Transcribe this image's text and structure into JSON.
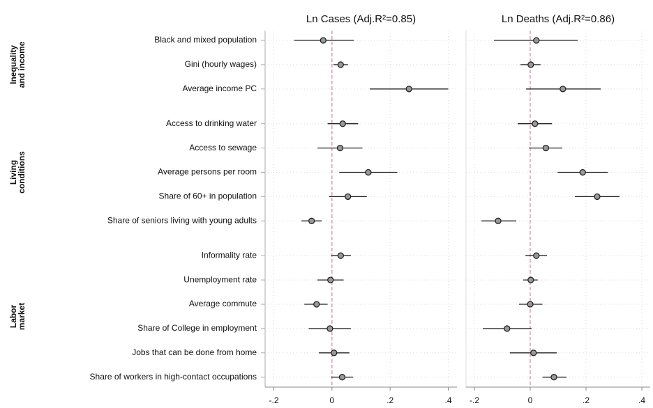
{
  "chart_data": [
    {
      "type": "errorbar",
      "title": "Ln Cases (Adj.R²=0.85)",
      "groups": [
        {
          "label": [
            "Inequality",
            "and income"
          ],
          "categories": [
            "Black and mixed population",
            "Gini (hourly wages)",
            "Average income PC"
          ]
        },
        {
          "label": [
            "Living",
            "conditions"
          ],
          "categories": [
            "Access to drinking water",
            "Access to sewage",
            "Average persons per room",
            "Share of 60+ in population",
            "Share of seniors living with young adults"
          ]
        },
        {
          "label": [
            "Labor",
            "market"
          ],
          "categories": [
            "Informality rate",
            "Unemployment rate",
            "Average commute",
            "Share of College in employment",
            "Jobs that can be done from home",
            "Share of workers in high-contact occupations"
          ]
        }
      ],
      "values": [
        -0.03,
        0.03,
        0.265,
        0.037,
        0.028,
        0.125,
        0.055,
        -0.07,
        0.03,
        -0.005,
        -0.053,
        -0.007,
        0.007,
        0.035
      ],
      "lower": [
        -0.13,
        0.005,
        0.13,
        -0.015,
        -0.05,
        0.025,
        -0.01,
        -0.105,
        -0.003,
        -0.05,
        -0.095,
        -0.08,
        -0.045,
        -0.003
      ],
      "upper": [
        0.075,
        0.055,
        0.4,
        0.09,
        0.105,
        0.225,
        0.12,
        -0.035,
        0.065,
        0.04,
        -0.015,
        0.065,
        0.06,
        0.073
      ],
      "xlim": [
        -0.23,
        0.43
      ],
      "xticks": [
        {
          "value": -0.2,
          "label": "-.2"
        },
        0,
        {
          "value": 0.2,
          "label": ".2"
        },
        {
          "value": 0.4,
          "label": ".4"
        }
      ],
      "grid": true
    },
    {
      "type": "errorbar",
      "title": "Ln Deaths (Adj.R²=0.86)",
      "values": [
        0.022,
        0.002,
        0.117,
        0.017,
        0.056,
        0.188,
        0.24,
        -0.115,
        0.022,
        0.002,
        0.0,
        -0.083,
        0.012,
        0.085
      ],
      "lower": [
        -0.13,
        -0.035,
        -0.015,
        -0.045,
        -0.005,
        0.098,
        0.16,
        -0.175,
        -0.017,
        -0.025,
        -0.04,
        -0.17,
        -0.073,
        0.044
      ],
      "upper": [
        0.17,
        0.037,
        0.253,
        0.078,
        0.115,
        0.278,
        0.32,
        -0.05,
        0.06,
        0.027,
        0.044,
        0.005,
        0.095,
        0.13
      ],
      "xlim": [
        -0.23,
        0.43
      ],
      "xticks": [
        {
          "value": -0.2,
          "label": "-.2"
        },
        0,
        {
          "value": 0.2,
          "label": ".2"
        },
        {
          "value": 0.4,
          "label": ".4"
        }
      ],
      "grid": true
    }
  ]
}
